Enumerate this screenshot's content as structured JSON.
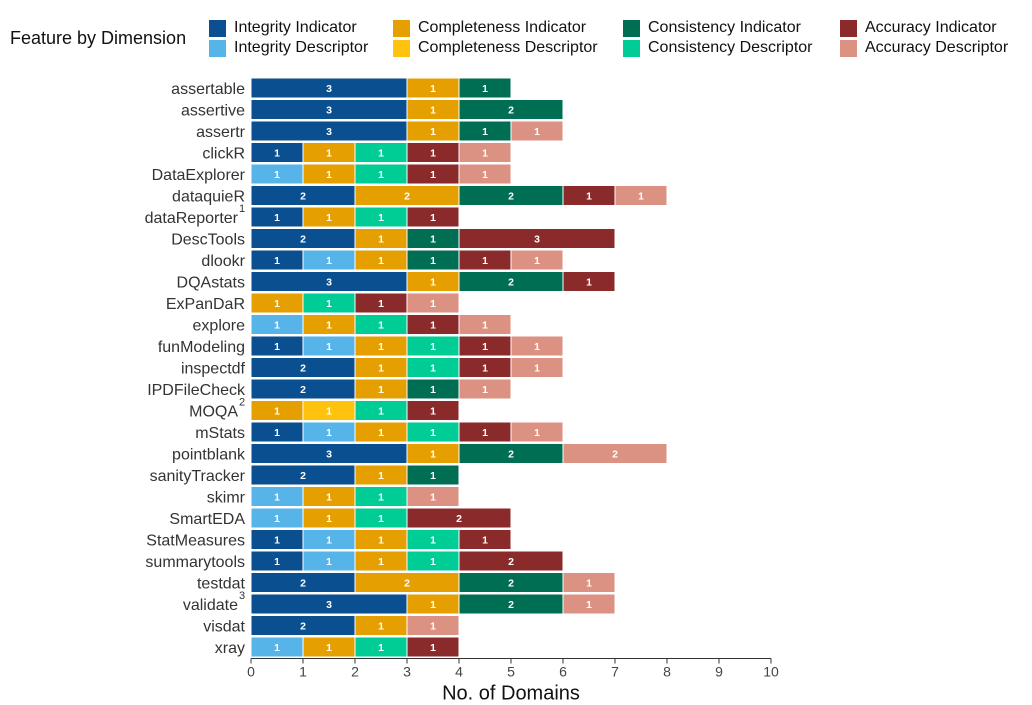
{
  "chart_data": {
    "type": "bar",
    "orientation": "horizontal",
    "stacked": true,
    "xlabel": "No. of Domains",
    "ylabel": "",
    "xlim": [
      0,
      10
    ],
    "xticks": [
      "0",
      "1",
      "2",
      "3",
      "4",
      "5",
      "6",
      "7",
      "8",
      "9",
      "10"
    ],
    "grid": false,
    "legend": {
      "title": "Feature by Dimension",
      "placement": "top",
      "entries": [
        {
          "key": "ii",
          "label": "Integrity Indicator",
          "color": "#0a4f8f"
        },
        {
          "key": "id",
          "label": "Integrity Descriptor",
          "color": "#56b4e9"
        },
        {
          "key": "ci",
          "label": "Completeness Indicator",
          "color": "#e69f00"
        },
        {
          "key": "cd",
          "label": "Completeness Descriptor",
          "color": "#ffc20e"
        },
        {
          "key": "si",
          "label": "Consistency Indicator",
          "color": "#006e52"
        },
        {
          "key": "sd",
          "label": "Consistency Descriptor",
          "color": "#00cc96"
        },
        {
          "key": "ai",
          "label": "Accuracy Indicator",
          "color": "#8b2a2a"
        },
        {
          "key": "ad",
          "label": "Accuracy Descriptor",
          "color": "#dc9282"
        }
      ]
    },
    "series_order": [
      "ii",
      "id",
      "ci",
      "cd",
      "si",
      "sd",
      "ai",
      "ad"
    ],
    "categories": [
      {
        "name": "assertable",
        "sup": "",
        "values": {
          "ii": 3,
          "ci": 1,
          "si": 1
        }
      },
      {
        "name": "assertive",
        "sup": "",
        "values": {
          "ii": 3,
          "ci": 1,
          "si": 2
        }
      },
      {
        "name": "assertr",
        "sup": "",
        "values": {
          "ii": 3,
          "ci": 1,
          "si": 1,
          "ad": 1
        }
      },
      {
        "name": "clickR",
        "sup": "",
        "values": {
          "ii": 1,
          "ci": 1,
          "sd": 1,
          "ai": 1,
          "ad": 1
        }
      },
      {
        "name": "DataExplorer",
        "sup": "",
        "values": {
          "id": 1,
          "ci": 1,
          "sd": 1,
          "ai": 1,
          "ad": 1
        }
      },
      {
        "name": "dataquieR",
        "sup": "",
        "values": {
          "ii": 2,
          "ci": 2,
          "si": 2,
          "ai": 1,
          "ad": 1
        }
      },
      {
        "name": "dataReporter",
        "sup": "1",
        "values": {
          "ii": 1,
          "ci": 1,
          "sd": 1,
          "ai": 1
        }
      },
      {
        "name": "DescTools",
        "sup": "",
        "values": {
          "ii": 2,
          "ci": 1,
          "si": 1,
          "ai": 3
        }
      },
      {
        "name": "dlookr",
        "sup": "",
        "values": {
          "ii": 1,
          "id": 1,
          "ci": 1,
          "si": 1,
          "ai": 1,
          "ad": 1
        }
      },
      {
        "name": "DQAstats",
        "sup": "",
        "values": {
          "ii": 3,
          "ci": 1,
          "si": 2,
          "ai": 1
        }
      },
      {
        "name": "ExPanDaR",
        "sup": "",
        "values": {
          "ci": 1,
          "sd": 1,
          "ai": 1,
          "ad": 1
        }
      },
      {
        "name": "explore",
        "sup": "",
        "values": {
          "id": 1,
          "ci": 1,
          "sd": 1,
          "ai": 1,
          "ad": 1
        }
      },
      {
        "name": "funModeling",
        "sup": "",
        "values": {
          "ii": 1,
          "id": 1,
          "ci": 1,
          "sd": 1,
          "ai": 1,
          "ad": 1
        }
      },
      {
        "name": "inspectdf",
        "sup": "",
        "values": {
          "ii": 2,
          "ci": 1,
          "sd": 1,
          "ai": 1,
          "ad": 1
        }
      },
      {
        "name": "IPDFileCheck",
        "sup": "",
        "values": {
          "ii": 2,
          "ci": 1,
          "si": 1,
          "ad": 1
        }
      },
      {
        "name": "MOQA",
        "sup": "2",
        "values": {
          "ci": 1,
          "cd": 1,
          "sd": 1,
          "ai": 1
        }
      },
      {
        "name": "mStats",
        "sup": "",
        "values": {
          "ii": 1,
          "id": 1,
          "ci": 1,
          "sd": 1,
          "ai": 1,
          "ad": 1
        }
      },
      {
        "name": "pointblank",
        "sup": "",
        "values": {
          "ii": 3,
          "ci": 1,
          "si": 2,
          "ad": 2
        }
      },
      {
        "name": "sanityTracker",
        "sup": "",
        "values": {
          "ii": 2,
          "ci": 1,
          "si": 1
        }
      },
      {
        "name": "skimr",
        "sup": "",
        "values": {
          "id": 1,
          "ci": 1,
          "sd": 1,
          "ad": 1
        }
      },
      {
        "name": "SmartEDA",
        "sup": "",
        "values": {
          "id": 1,
          "ci": 1,
          "sd": 1,
          "ai": 2
        }
      },
      {
        "name": "StatMeasures",
        "sup": "",
        "values": {
          "ii": 1,
          "id": 1,
          "ci": 1,
          "sd": 1,
          "ai": 1
        }
      },
      {
        "name": "summarytools",
        "sup": "",
        "values": {
          "ii": 1,
          "id": 1,
          "ci": 1,
          "sd": 1,
          "ai": 2
        }
      },
      {
        "name": "testdat",
        "sup": "",
        "values": {
          "ii": 2,
          "ci": 2,
          "si": 2,
          "ad": 1
        }
      },
      {
        "name": "validate",
        "sup": "3",
        "values": {
          "ii": 3,
          "ci": 1,
          "si": 2,
          "ad": 1
        }
      },
      {
        "name": "visdat",
        "sup": "",
        "values": {
          "ii": 2,
          "ci": 1,
          "ad": 1
        }
      },
      {
        "name": "xray",
        "sup": "",
        "values": {
          "id": 1,
          "ci": 1,
          "sd": 1,
          "ai": 1
        }
      }
    ]
  }
}
